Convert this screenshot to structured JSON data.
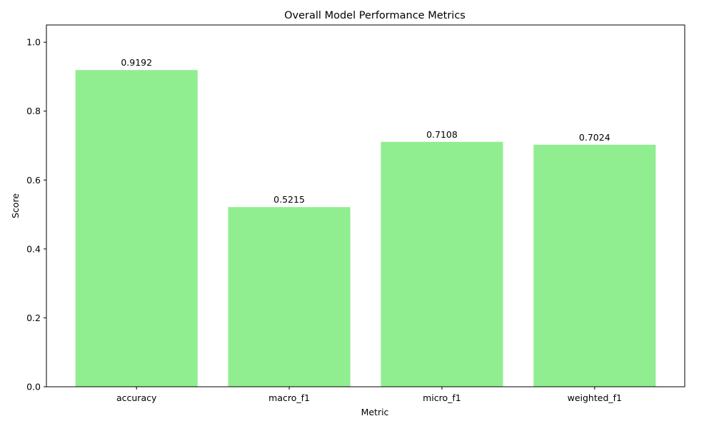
{
  "chart_data": {
    "type": "bar",
    "title": "Overall Model Performance Metrics",
    "xlabel": "Metric",
    "ylabel": "Score",
    "categories": [
      "accuracy",
      "macro_f1",
      "micro_f1",
      "weighted_f1"
    ],
    "values": [
      0.9192,
      0.5215,
      0.7108,
      0.7024
    ],
    "data_labels": [
      "0.9192",
      "0.5215",
      "0.7108",
      "0.7024"
    ],
    "ylim": [
      0,
      1.05
    ],
    "yticks": [
      0.0,
      0.2,
      0.4,
      0.6,
      0.8,
      1.0
    ],
    "ytick_labels": [
      "0.0",
      "0.2",
      "0.4",
      "0.6",
      "0.8",
      "1.0"
    ],
    "bar_color": "#90EE90",
    "grid": false
  }
}
